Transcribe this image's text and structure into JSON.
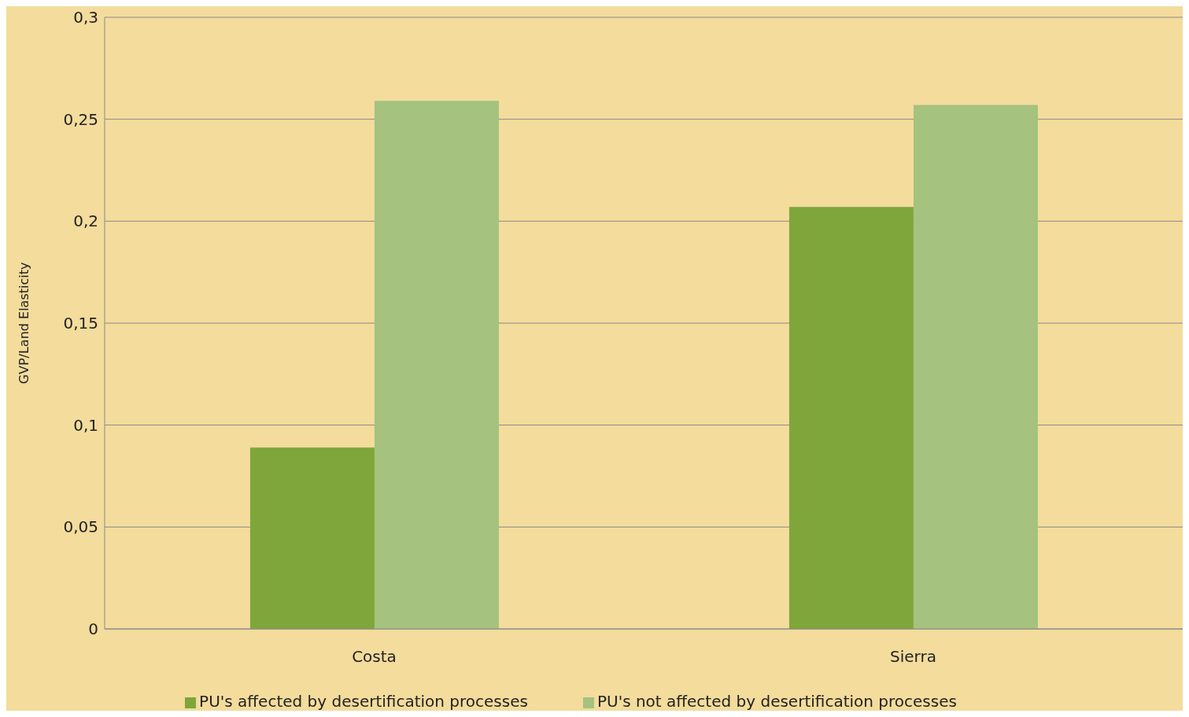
{
  "chart_data": {
    "type": "bar",
    "ylabel": "GVP/Land Elasticity",
    "categories": [
      "Costa",
      "Sierra"
    ],
    "series": [
      {
        "name": "PU's affected by desertification processes",
        "color": "#7ea63a",
        "values": [
          0.089,
          0.207
        ]
      },
      {
        "name": "PU's not affected by desertification processes",
        "color": "#a5c27f",
        "values": [
          0.259,
          0.257
        ]
      }
    ],
    "ylim": [
      0,
      0.3
    ],
    "yticks": [
      0,
      {
        "value": 0.05,
        "label": "0,05"
      },
      {
        "value": 0.1,
        "label": "0,1"
      },
      {
        "value": 0.15,
        "label": "0,15"
      },
      {
        "value": 0.2,
        "label": "0,2"
      },
      {
        "value": 0.25,
        "label": "0,25"
      },
      {
        "value": 0.3,
        "label": "0,3"
      }
    ],
    "grid": "y",
    "legend": "bottom"
  }
}
